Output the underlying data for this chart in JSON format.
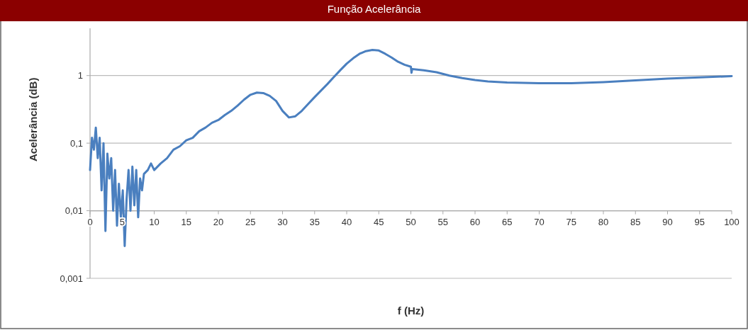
{
  "chart_data": {
    "type": "line",
    "title": "Função Acelerância",
    "xlabel": "f (Hz)",
    "ylabel": "Acelerância (dB)",
    "log": "y",
    "grid": "y",
    "marker": "none",
    "line_style": "solid",
    "xlim": [
      0,
      100
    ],
    "xticks": [
      0,
      5,
      10,
      15,
      20,
      25,
      30,
      35,
      40,
      45,
      50,
      55,
      60,
      65,
      70,
      75,
      80,
      85,
      90,
      95,
      100
    ],
    "ylim": [
      0.001,
      5
    ],
    "yticks": [
      {
        "value": 0.001,
        "label": "0,001"
      },
      {
        "value": 0.01,
        "label": "0,01"
      },
      {
        "value": 0.1,
        "label": "0,1"
      },
      1
    ],
    "series": [
      {
        "color": "#4a7fbf",
        "x": [
          0,
          0.3,
          0.6,
          0.9,
          1.2,
          1.5,
          1.8,
          2.1,
          2.4,
          2.7,
          3.0,
          3.3,
          3.6,
          3.9,
          4.2,
          4.5,
          4.8,
          5.1,
          5.4,
          5.7,
          6.0,
          6.3,
          6.6,
          6.9,
          7.2,
          7.5,
          7.8,
          8.1,
          8.4,
          9,
          9.5,
          10,
          11,
          12,
          13,
          14,
          15,
          16,
          17,
          18,
          19,
          20,
          21,
          22,
          23,
          24,
          25,
          26,
          27,
          28,
          29,
          30,
          31,
          32,
          33,
          34,
          35,
          36,
          37,
          38,
          39,
          40,
          41,
          42,
          43,
          44,
          45,
          46,
          47,
          48,
          49,
          50,
          50.1,
          50.2,
          52,
          54,
          56,
          58,
          60,
          62,
          65,
          70,
          75,
          80,
          85,
          90,
          95,
          100
        ],
        "values": [
          0.04,
          0.12,
          0.08,
          0.17,
          0.06,
          0.12,
          0.02,
          0.1,
          0.005,
          0.07,
          0.03,
          0.06,
          0.01,
          0.04,
          0.006,
          0.025,
          0.008,
          0.02,
          0.003,
          0.015,
          0.04,
          0.01,
          0.045,
          0.012,
          0.04,
          0.008,
          0.03,
          0.02,
          0.035,
          0.04,
          0.05,
          0.04,
          0.05,
          0.06,
          0.08,
          0.09,
          0.11,
          0.12,
          0.15,
          0.17,
          0.2,
          0.22,
          0.26,
          0.3,
          0.36,
          0.44,
          0.52,
          0.56,
          0.55,
          0.5,
          0.42,
          0.3,
          0.24,
          0.25,
          0.3,
          0.38,
          0.48,
          0.6,
          0.75,
          0.95,
          1.2,
          1.5,
          1.8,
          2.1,
          2.3,
          2.4,
          2.35,
          2.1,
          1.85,
          1.6,
          1.45,
          1.35,
          1.1,
          1.25,
          1.2,
          1.12,
          1.0,
          0.92,
          0.86,
          0.82,
          0.79,
          0.77,
          0.77,
          0.8,
          0.85,
          0.9,
          0.94,
          0.98
        ]
      }
    ]
  }
}
